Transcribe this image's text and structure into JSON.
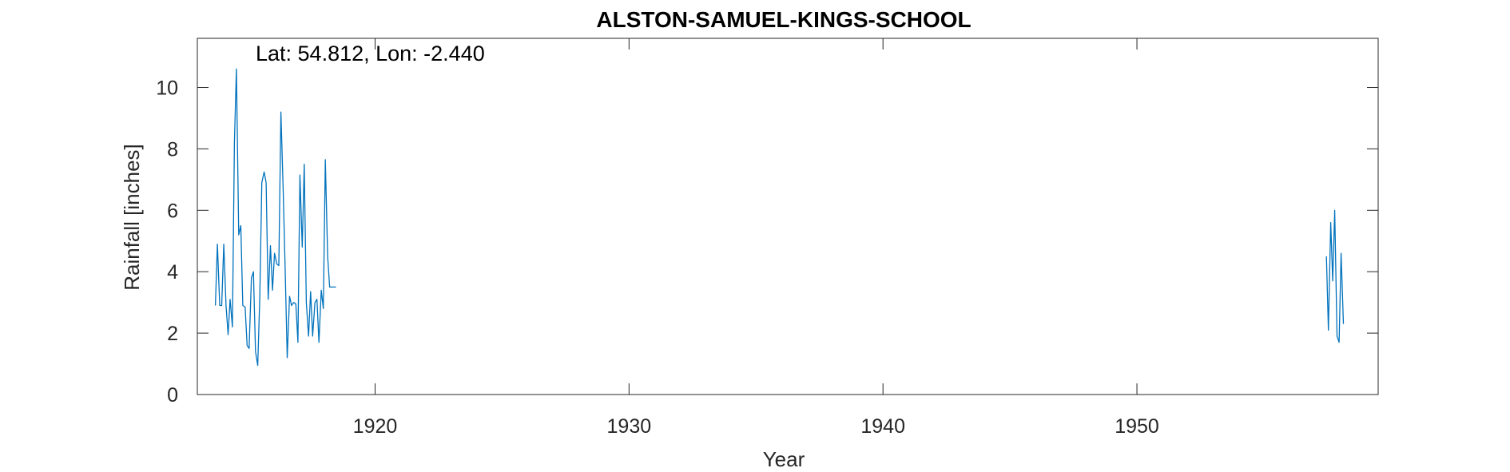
{
  "chart_data": {
    "type": "line",
    "title": "ALSTON-SAMUEL-KINGS-SCHOOL",
    "xlabel": "Year",
    "ylabel": "Rainfall [inches]",
    "annotation": "Lat: 54.812, Lon: -2.440",
    "xlim": [
      1913.0,
      1959.5
    ],
    "ylim": [
      0,
      11.6
    ],
    "x_ticks": [
      1920,
      1930,
      1940,
      1950
    ],
    "y_ticks": [
      0,
      2,
      4,
      6,
      8,
      10
    ],
    "grid": false,
    "line_color": "#0072BD",
    "series": [
      {
        "segments": [
          {
            "x": [
              1913.71,
              1913.79,
              1913.88,
              1913.96,
              1914.04,
              1914.13,
              1914.21,
              1914.29,
              1914.38,
              1914.46,
              1914.54,
              1914.63,
              1914.71,
              1914.79,
              1914.88,
              1914.96,
              1915.04,
              1915.13,
              1915.21,
              1915.29,
              1915.38,
              1915.46,
              1915.54,
              1915.63,
              1915.71,
              1915.79,
              1915.88,
              1915.96,
              1916.04,
              1916.13,
              1916.21,
              1916.29,
              1916.38,
              1916.46,
              1916.54,
              1916.63,
              1916.71,
              1916.79,
              1916.88,
              1916.96,
              1917.04,
              1917.13,
              1917.21,
              1917.29,
              1917.38,
              1917.46,
              1917.54,
              1917.63,
              1917.71,
              1917.79,
              1917.88,
              1917.96,
              1918.04,
              1918.13,
              1918.21,
              1918.29,
              1918.38,
              1918.46
            ],
            "y": [
              2.9,
              4.9,
              2.9,
              2.9,
              4.9,
              2.9,
              1.95,
              3.1,
              2.2,
              8.2,
              10.6,
              5.2,
              5.5,
              2.9,
              2.85,
              1.6,
              1.5,
              3.8,
              4.0,
              1.4,
              0.95,
              3.2,
              6.9,
              7.25,
              6.9,
              3.1,
              4.85,
              3.4,
              4.6,
              4.25,
              4.2,
              9.2,
              6.7,
              4.0,
              1.2,
              3.2,
              2.9,
              3.0,
              2.95,
              1.7,
              7.15,
              4.8,
              7.5,
              3.0,
              1.9,
              3.35,
              1.9,
              3.0,
              3.1,
              1.7,
              3.4,
              2.8,
              7.65,
              4.5,
              3.5,
              3.5,
              3.5,
              3.5
            ]
          },
          {
            "x": [
              1957.46,
              1957.54,
              1957.63,
              1957.71,
              1957.79,
              1957.88,
              1957.96,
              1958.04,
              1958.13
            ],
            "y": [
              4.5,
              2.1,
              5.6,
              3.7,
              6.0,
              1.9,
              1.7,
              4.6,
              2.3
            ]
          }
        ]
      }
    ]
  }
}
